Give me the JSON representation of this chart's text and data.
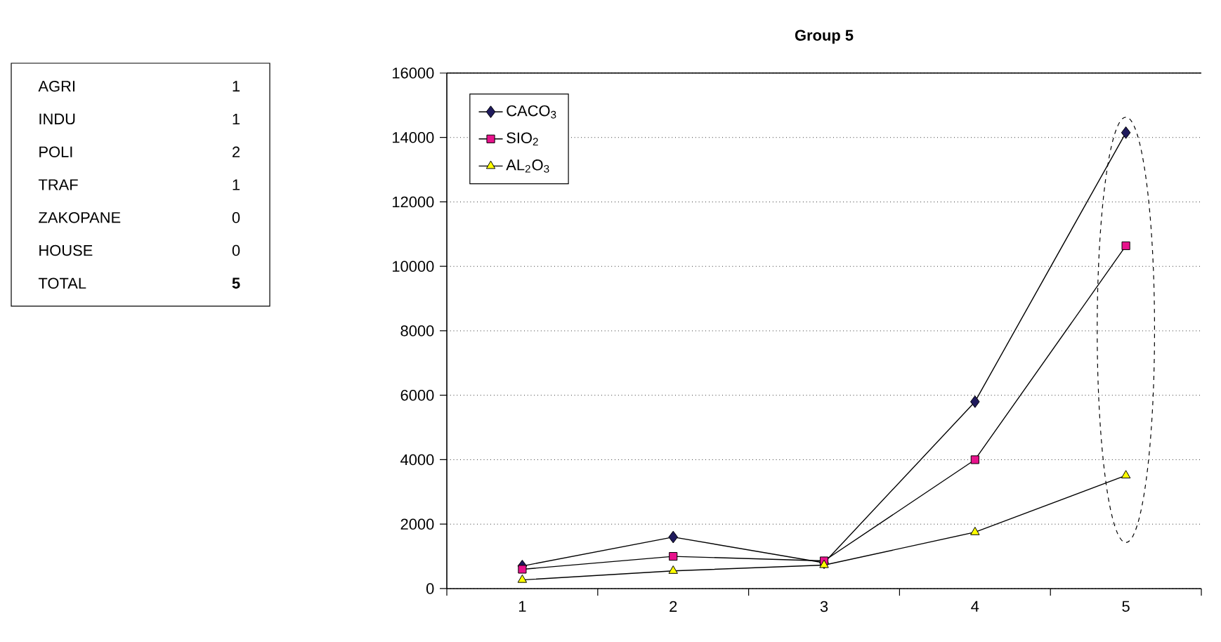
{
  "chart_data": {
    "type": "line",
    "title": "Group 5",
    "categories": [
      "1",
      "2",
      "3",
      "4",
      "5"
    ],
    "series": [
      {
        "name": "CACO$_{3}$",
        "color": "#1f1a5c",
        "marker": "diamond",
        "values": [
          700,
          1600,
          800,
          5800,
          14150
        ]
      },
      {
        "name": "SIO$_{2}$",
        "color": "#e8128c",
        "marker": "square",
        "values": [
          600,
          1000,
          860,
          4000,
          10640
        ]
      },
      {
        "name": "AL$_{2}$O$_{3}$",
        "color": "#ffff00",
        "marker": "triangle",
        "values": [
          270,
          550,
          730,
          1750,
          3510
        ]
      }
    ],
    "ylim": [
      0,
      16000
    ],
    "yticks": [
      0,
      2000,
      4000,
      6000,
      8000,
      10000,
      12000,
      14000,
      16000
    ],
    "grid": "y",
    "legend": "top left",
    "line_style": "solid",
    "annotations": [
      "AGRI",
      "1",
      "INDU",
      "1",
      "POLI",
      "2",
      "TRAF",
      "1",
      "ZAKOPANE",
      "0",
      "HOUSE",
      "0",
      "TOTAL",
      "**5**"
    ]
  }
}
